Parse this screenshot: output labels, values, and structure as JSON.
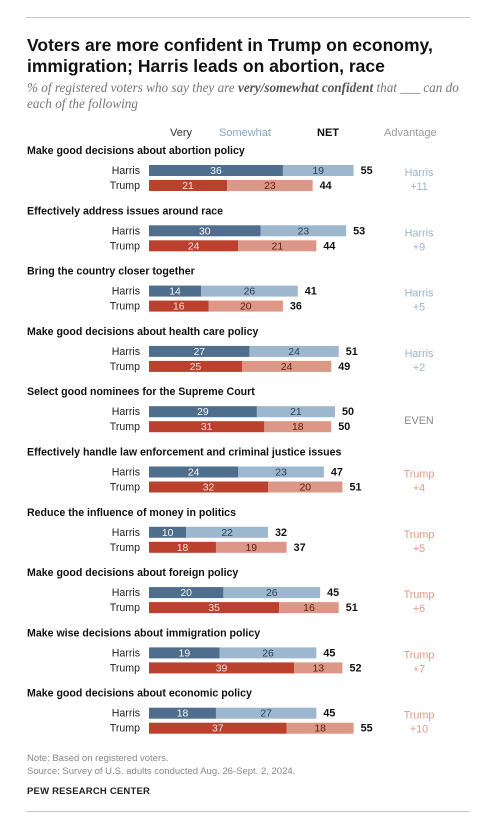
{
  "title": "Voters are more confident in Trump on economy, immigration; Harris leads on abortion, race",
  "subtitle": {
    "before": "% of registered voters who say they are ",
    "emphasis": "very/somewhat confident",
    "after": " that ___ can do each of the following"
  },
  "headers": {
    "very": "Very",
    "somewhat": "Somewhat",
    "net": "NET",
    "advantage": "Advantage"
  },
  "colors": {
    "harris_very": "#4f6e8e",
    "harris_somewhat": "#9db7cf",
    "trump_very": "#b9412d",
    "trump_somewhat": "#dd9786",
    "harris_adv": "#9bb3cc",
    "trump_adv": "#e09b87",
    "even": "#888888"
  },
  "chart_data": {
    "type": "bar",
    "orientation": "horizontal",
    "stacked": true,
    "candidates": [
      "Harris",
      "Trump"
    ],
    "segments": [
      "Very",
      "Somewhat"
    ],
    "categories": [
      {
        "label": "Make good decisions about abortion policy",
        "harris": {
          "very": 36,
          "somewhat": 19,
          "net": 55
        },
        "trump": {
          "very": 21,
          "somewhat": 23,
          "net": 44
        },
        "advantage": {
          "leader": "harris",
          "lines": [
            "Harris",
            "+11"
          ]
        }
      },
      {
        "label": "Effectively address issues around race",
        "harris": {
          "very": 30,
          "somewhat": 23,
          "net": 53
        },
        "trump": {
          "very": 24,
          "somewhat": 21,
          "net": 44
        },
        "advantage": {
          "leader": "harris",
          "lines": [
            "Harris",
            "+9"
          ]
        }
      },
      {
        "label": "Bring the country closer together",
        "harris": {
          "very": 14,
          "somewhat": 26,
          "net": 41
        },
        "trump": {
          "very": 16,
          "somewhat": 20,
          "net": 36
        },
        "advantage": {
          "leader": "harris",
          "lines": [
            "Harris",
            "+5"
          ]
        }
      },
      {
        "label": "Make good decisions about health care policy",
        "harris": {
          "very": 27,
          "somewhat": 24,
          "net": 51
        },
        "trump": {
          "very": 25,
          "somewhat": 24,
          "net": 49
        },
        "advantage": {
          "leader": "harris",
          "lines": [
            "Harris",
            "+2"
          ]
        }
      },
      {
        "label": "Select good nominees for the Supreme Court",
        "harris": {
          "very": 29,
          "somewhat": 21,
          "net": 50
        },
        "trump": {
          "very": 31,
          "somewhat": 18,
          "net": 50
        },
        "advantage": {
          "leader": "even",
          "lines": [
            "EVEN"
          ]
        }
      },
      {
        "label": "Effectively handle law enforcement and criminal justice issues",
        "harris": {
          "very": 24,
          "somewhat": 23,
          "net": 47
        },
        "trump": {
          "very": 32,
          "somewhat": 20,
          "net": 51
        },
        "advantage": {
          "leader": "trump",
          "lines": [
            "Trump",
            "+4"
          ]
        }
      },
      {
        "label": "Reduce the influence of money in politics",
        "harris": {
          "very": 10,
          "somewhat": 22,
          "net": 32
        },
        "trump": {
          "very": 18,
          "somewhat": 19,
          "net": 37
        },
        "advantage": {
          "leader": "trump",
          "lines": [
            "Trump",
            "+5"
          ]
        }
      },
      {
        "label": "Make good decisions about foreign policy",
        "harris": {
          "very": 20,
          "somewhat": 26,
          "net": 45
        },
        "trump": {
          "very": 35,
          "somewhat": 16,
          "net": 51
        },
        "advantage": {
          "leader": "trump",
          "lines": [
            "Trump",
            "+6"
          ]
        }
      },
      {
        "label": "Make wise decisions about immigration policy",
        "harris": {
          "very": 19,
          "somewhat": 26,
          "net": 45
        },
        "trump": {
          "very": 39,
          "somewhat": 13,
          "net": 52
        },
        "advantage": {
          "leader": "trump",
          "lines": [
            "Trump",
            "+7"
          ]
        }
      },
      {
        "label": "Make good decisions about economic policy",
        "harris": {
          "very": 18,
          "somewhat": 27,
          "net": 45
        },
        "trump": {
          "very": 37,
          "somewhat": 18,
          "net": 55
        },
        "advantage": {
          "leader": "trump",
          "lines": [
            "Trump",
            "+10"
          ]
        }
      }
    ]
  },
  "notes": [
    "Note: Based on registered voters.",
    "Source: Survey of U.S. adults conducted Aug. 26-Sept. 2, 2024."
  ],
  "source_org": "PEW RESEARCH CENTER"
}
